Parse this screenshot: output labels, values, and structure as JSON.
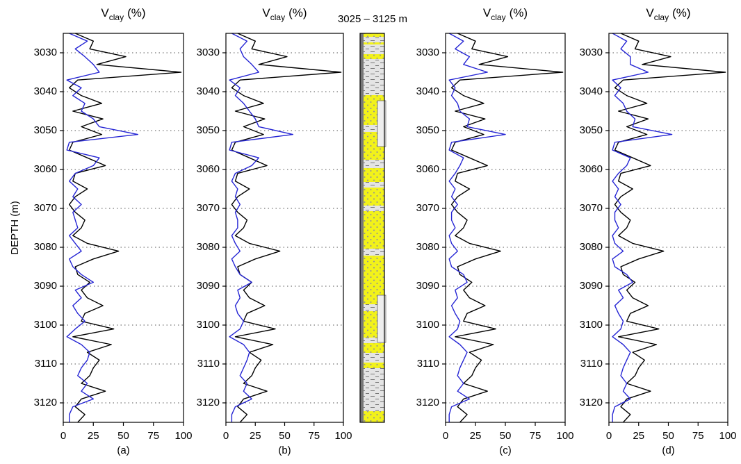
{
  "lithology": {
    "title": "3025 – 3125 m"
  },
  "chart_data": [
    {
      "type": "line",
      "title": {
        "main": "V",
        "sub": "clay",
        "unit": "(%)"
      },
      "label": "(a)",
      "ylabel": "DEPTH (m)",
      "xlim": [
        0,
        100
      ],
      "xticks": [
        0,
        25,
        50,
        75,
        100
      ],
      "ylim": [
        3025,
        3125
      ],
      "y_inverted": true,
      "yticks": [
        3030,
        3040,
        3050,
        3060,
        3070,
        3080,
        3090,
        3100,
        3110,
        3120
      ],
      "grid": true,
      "depth": [
        3025,
        3027,
        3029,
        3031,
        3033,
        3035,
        3037,
        3039,
        3041,
        3043,
        3045,
        3047,
        3049,
        3051,
        3053,
        3055,
        3057,
        3059,
        3061,
        3063,
        3065,
        3067,
        3069,
        3071,
        3073,
        3075,
        3077,
        3079,
        3081,
        3083,
        3085,
        3087,
        3089,
        3091,
        3093,
        3095,
        3097,
        3099,
        3101,
        3103,
        3105,
        3107,
        3109,
        3111,
        3113,
        3115,
        3117,
        3119,
        3121,
        3123,
        3125
      ],
      "series": [
        {
          "color": "#000000",
          "values": [
            10,
            25,
            22,
            52,
            28,
            98,
            12,
            5,
            15,
            32,
            8,
            33,
            15,
            32,
            8,
            5,
            20,
            35,
            10,
            8,
            20,
            10,
            5,
            10,
            18,
            15,
            8,
            20,
            46,
            25,
            10,
            12,
            22,
            15,
            20,
            33,
            18,
            15,
            42,
            8,
            40,
            20,
            30,
            25,
            22,
            15,
            35,
            15,
            10,
            18,
            12
          ]
        },
        {
          "color": "#2525d4",
          "values": [
            5,
            20,
            10,
            18,
            25,
            30,
            3,
            15,
            8,
            18,
            15,
            25,
            30,
            62,
            5,
            3,
            30,
            25,
            10,
            5,
            12,
            8,
            15,
            8,
            10,
            12,
            5,
            10,
            15,
            5,
            8,
            15,
            25,
            10,
            15,
            8,
            12,
            18,
            10,
            3,
            15,
            22,
            20,
            15,
            12,
            20,
            15,
            25,
            8,
            5,
            5
          ]
        }
      ]
    },
    {
      "type": "line",
      "title": {
        "main": "V",
        "sub": "clay",
        "unit": "(%)"
      },
      "label": "(b)",
      "xlim": [
        0,
        100
      ],
      "xticks": [
        0,
        25,
        50,
        75,
        100
      ],
      "ylim": [
        3025,
        3125
      ],
      "y_inverted": true,
      "yticks": [
        3030,
        3040,
        3050,
        3060,
        3070,
        3080,
        3090,
        3100,
        3110,
        3120
      ],
      "grid": true,
      "depth": [
        3025,
        3027,
        3029,
        3031,
        3033,
        3035,
        3037,
        3039,
        3041,
        3043,
        3045,
        3047,
        3049,
        3051,
        3053,
        3055,
        3057,
        3059,
        3061,
        3063,
        3065,
        3067,
        3069,
        3071,
        3073,
        3075,
        3077,
        3079,
        3081,
        3083,
        3085,
        3087,
        3089,
        3091,
        3093,
        3095,
        3097,
        3099,
        3101,
        3103,
        3105,
        3107,
        3109,
        3111,
        3113,
        3115,
        3117,
        3119,
        3121,
        3123,
        3125
      ],
      "series": [
        {
          "color": "#000000",
          "values": [
            10,
            25,
            22,
            52,
            28,
            98,
            12,
            5,
            15,
            32,
            8,
            33,
            15,
            32,
            8,
            5,
            20,
            35,
            10,
            8,
            20,
            10,
            5,
            10,
            18,
            15,
            8,
            20,
            46,
            25,
            10,
            12,
            22,
            15,
            20,
            33,
            18,
            15,
            42,
            8,
            40,
            20,
            30,
            25,
            22,
            15,
            35,
            15,
            10,
            18,
            12
          ]
        },
        {
          "color": "#2525d4",
          "values": [
            5,
            18,
            12,
            15,
            22,
            28,
            3,
            12,
            8,
            15,
            20,
            25,
            28,
            57,
            5,
            3,
            28,
            22,
            8,
            5,
            10,
            8,
            12,
            8,
            10,
            10,
            5,
            8,
            12,
            5,
            8,
            12,
            22,
            10,
            12,
            8,
            10,
            15,
            12,
            3,
            15,
            20,
            18,
            15,
            12,
            18,
            15,
            22,
            8,
            5,
            5
          ]
        }
      ]
    },
    {
      "type": "line",
      "title": {
        "main": "V",
        "sub": "clay",
        "unit": "(%)"
      },
      "label": "(c)",
      "xlim": [
        0,
        100
      ],
      "xticks": [
        0,
        25,
        50,
        75,
        100
      ],
      "ylim": [
        3025,
        3125
      ],
      "y_inverted": true,
      "yticks": [
        3030,
        3040,
        3050,
        3060,
        3070,
        3080,
        3090,
        3100,
        3110,
        3120
      ],
      "grid": true,
      "depth": [
        3025,
        3027,
        3029,
        3031,
        3033,
        3035,
        3037,
        3039,
        3041,
        3043,
        3045,
        3047,
        3049,
        3051,
        3053,
        3055,
        3057,
        3059,
        3061,
        3063,
        3065,
        3067,
        3069,
        3071,
        3073,
        3075,
        3077,
        3079,
        3081,
        3083,
        3085,
        3087,
        3089,
        3091,
        3093,
        3095,
        3097,
        3099,
        3101,
        3103,
        3105,
        3107,
        3109,
        3111,
        3113,
        3115,
        3117,
        3119,
        3121,
        3123,
        3125
      ],
      "series": [
        {
          "color": "#000000",
          "values": [
            10,
            25,
            22,
            52,
            28,
            98,
            12,
            5,
            15,
            32,
            8,
            33,
            15,
            32,
            8,
            5,
            20,
            35,
            10,
            8,
            20,
            10,
            5,
            10,
            18,
            15,
            8,
            20,
            46,
            25,
            10,
            12,
            22,
            15,
            20,
            33,
            18,
            15,
            42,
            8,
            40,
            20,
            30,
            25,
            22,
            15,
            35,
            15,
            10,
            18,
            12
          ]
        },
        {
          "color": "#2525d4",
          "values": [
            3,
            15,
            8,
            20,
            15,
            35,
            3,
            8,
            5,
            10,
            12,
            20,
            18,
            50,
            5,
            3,
            15,
            12,
            8,
            3,
            8,
            5,
            10,
            5,
            5,
            8,
            3,
            5,
            10,
            3,
            5,
            15,
            18,
            8,
            10,
            5,
            8,
            12,
            10,
            3,
            12,
            18,
            15,
            12,
            10,
            15,
            10,
            20,
            5,
            3,
            3
          ]
        }
      ]
    },
    {
      "type": "line",
      "title": {
        "main": "V",
        "sub": "clay",
        "unit": "(%)"
      },
      "label": "(d)",
      "xlim": [
        0,
        100
      ],
      "xticks": [
        0,
        25,
        50,
        75,
        100
      ],
      "ylim": [
        3025,
        3125
      ],
      "y_inverted": true,
      "yticks": [
        3030,
        3040,
        3050,
        3060,
        3070,
        3080,
        3090,
        3100,
        3110,
        3120
      ],
      "grid": true,
      "depth": [
        3025,
        3027,
        3029,
        3031,
        3033,
        3035,
        3037,
        3039,
        3041,
        3043,
        3045,
        3047,
        3049,
        3051,
        3053,
        3055,
        3057,
        3059,
        3061,
        3063,
        3065,
        3067,
        3069,
        3071,
        3073,
        3075,
        3077,
        3079,
        3081,
        3083,
        3085,
        3087,
        3089,
        3091,
        3093,
        3095,
        3097,
        3099,
        3101,
        3103,
        3105,
        3107,
        3109,
        3111,
        3113,
        3115,
        3117,
        3119,
        3121,
        3123,
        3125
      ],
      "series": [
        {
          "color": "#000000",
          "values": [
            10,
            25,
            22,
            52,
            28,
            98,
            12,
            5,
            15,
            32,
            8,
            33,
            15,
            32,
            8,
            5,
            20,
            35,
            10,
            8,
            20,
            10,
            5,
            10,
            18,
            15,
            8,
            20,
            46,
            25,
            10,
            12,
            22,
            15,
            20,
            33,
            18,
            15,
            42,
            8,
            40,
            20,
            30,
            25,
            22,
            15,
            35,
            15,
            10,
            18,
            12
          ]
        },
        {
          "color": "#2525d4",
          "values": [
            3,
            15,
            10,
            18,
            18,
            33,
            3,
            10,
            5,
            12,
            15,
            22,
            20,
            53,
            5,
            3,
            18,
            15,
            8,
            3,
            8,
            5,
            10,
            5,
            5,
            8,
            3,
            5,
            12,
            3,
            5,
            15,
            20,
            8,
            12,
            5,
            8,
            12,
            10,
            3,
            12,
            18,
            15,
            12,
            10,
            15,
            12,
            18,
            5,
            3,
            3
          ]
        }
      ]
    }
  ]
}
